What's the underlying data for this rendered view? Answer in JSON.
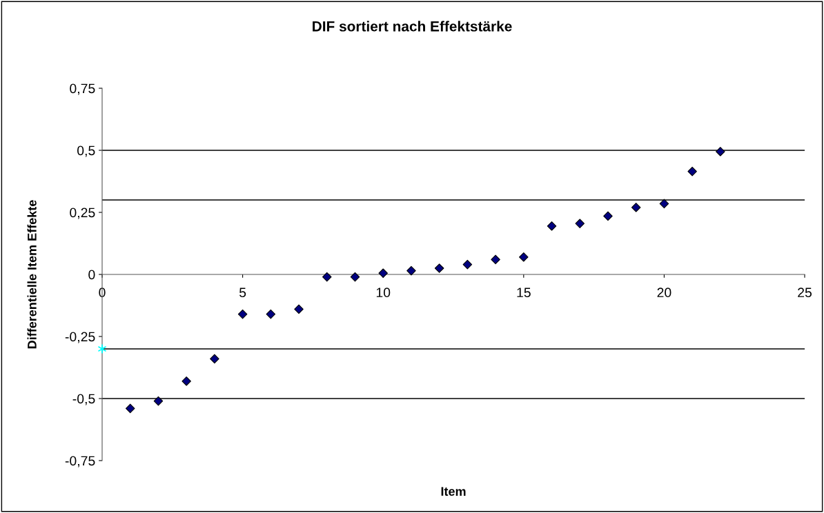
{
  "chart_data": {
    "type": "scatter",
    "title": "DIF sortiert nach Effektstärke",
    "xlabel": "Item",
    "ylabel": "Differentielle Item Effekte",
    "x": [
      1,
      2,
      3,
      4,
      5,
      6,
      7,
      8,
      9,
      10,
      11,
      12,
      13,
      14,
      15,
      16,
      17,
      18,
      19,
      20,
      21,
      22
    ],
    "series": [
      {
        "color": "#000080",
        "marker": "diamond",
        "values": [
          -0.54,
          -0.51,
          -0.43,
          -0.34,
          -0.16,
          -0.16,
          -0.14,
          -0.01,
          -0.01,
          0.005,
          0.015,
          0.025,
          0.04,
          0.06,
          0.07,
          0.195,
          0.205,
          0.235,
          0.27,
          0.285,
          0.415,
          0.495
        ]
      },
      {
        "color": "#00ffff",
        "marker": "cross",
        "x": [
          0
        ],
        "values": [
          -0.3
        ]
      }
    ],
    "ref_lines": [
      {
        "axis": "y",
        "value": 0.5,
        "color": "#000000"
      },
      {
        "axis": "y",
        "value": 0.3,
        "color": "#000000"
      },
      {
        "axis": "y",
        "value": -0.3,
        "color": "#000000"
      },
      {
        "axis": "y",
        "value": -0.5,
        "color": "#000000"
      }
    ],
    "xlim": [
      0,
      25
    ],
    "xticks": [
      0,
      5,
      10,
      15,
      20,
      25
    ],
    "ylim": [
      -0.75,
      0.75
    ],
    "yticks": [
      {
        "value": -0.75,
        "label": "-0,75"
      },
      {
        "value": -0.5,
        "label": "-0,5"
      },
      {
        "value": -0.25,
        "label": "-0,25"
      },
      0,
      {
        "value": 0.25,
        "label": "0,25"
      },
      {
        "value": 0.5,
        "label": "0,5"
      },
      {
        "value": 0.75,
        "label": "0,75"
      }
    ],
    "grid": false,
    "legend": false
  }
}
